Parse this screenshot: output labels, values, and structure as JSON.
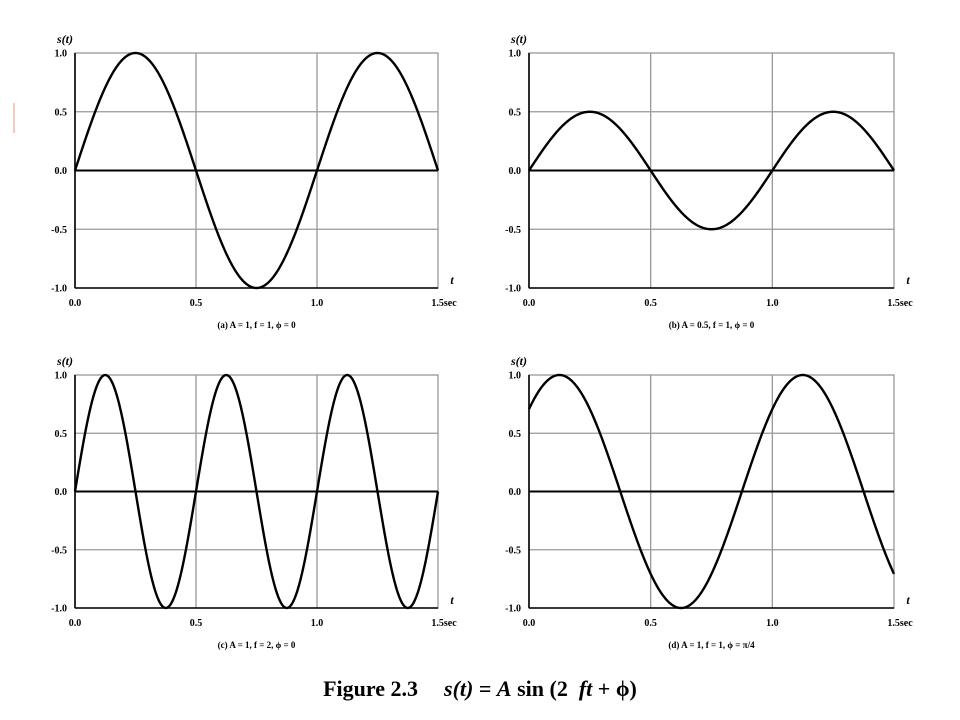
{
  "caption": {
    "label": "Figure 2.3",
    "lhs": "s(t)",
    "eq": "=",
    "amp": "A",
    "fn": "sin (2",
    "ft": "ft",
    "rest": "+ ϕ)"
  },
  "colors": {
    "axis": "#000000",
    "grid": "#999999",
    "curve": "#000000",
    "accent": "#f3c9c4"
  },
  "chart_data": [
    {
      "type": "line",
      "ylabel": "s(t)",
      "xlabel": "t",
      "xlim": [
        0,
        1.5
      ],
      "ylim": [
        -1,
        1
      ],
      "xticks": [
        "0.0",
        "0.5",
        "1.0",
        "1.5sec"
      ],
      "yticks": [
        "1.0",
        "0.5",
        "0.0",
        "-0.5",
        "-1.0"
      ],
      "function": "A*sin(2*pi*f*t + phi)",
      "params": {
        "A": 1,
        "f": 1,
        "phi": 0
      },
      "subcaption": "(a) A = 1, f = 1, ϕ = 0",
      "grid": true
    },
    {
      "type": "line",
      "ylabel": "s(t)",
      "xlabel": "t",
      "xlim": [
        0,
        1.5
      ],
      "ylim": [
        -1,
        1
      ],
      "xticks": [
        "0.0",
        "0.5",
        "1.0",
        "1.5sec"
      ],
      "yticks": [
        "1.0",
        "0.5",
        "0.0",
        "-0.5",
        "-1.0"
      ],
      "function": "A*sin(2*pi*f*t + phi)",
      "params": {
        "A": 0.5,
        "f": 1,
        "phi": 0
      },
      "subcaption": "(b) A = 0.5, f = 1, ϕ = 0",
      "grid": true
    },
    {
      "type": "line",
      "ylabel": "s(t)",
      "xlabel": "t",
      "xlim": [
        0,
        1.5
      ],
      "ylim": [
        -1,
        1
      ],
      "xticks": [
        "0.0",
        "0.5",
        "1.0",
        "1.5sec"
      ],
      "yticks": [
        "1.0",
        "0.5",
        "0.0",
        "-0.5",
        "-1.0"
      ],
      "function": "A*sin(2*pi*f*t + phi)",
      "params": {
        "A": 1,
        "f": 2,
        "phi": 0
      },
      "subcaption": "(c) A = 1, f = 2, ϕ = 0",
      "grid": true
    },
    {
      "type": "line",
      "ylabel": "s(t)",
      "xlabel": "t",
      "xlim": [
        0,
        1.5
      ],
      "ylim": [
        -1,
        1
      ],
      "xticks": [
        "0.0",
        "0.5",
        "1.0",
        "1.5sec"
      ],
      "yticks": [
        "1.0",
        "0.5",
        "0.0",
        "-0.5",
        "-1.0"
      ],
      "function": "A*sin(2*pi*f*t + phi)",
      "params": {
        "A": 1,
        "f": 1,
        "phi": 0.7853981634
      },
      "subcaption": "(d) A = 1, f = 1, ϕ = π/4",
      "grid": true
    }
  ]
}
